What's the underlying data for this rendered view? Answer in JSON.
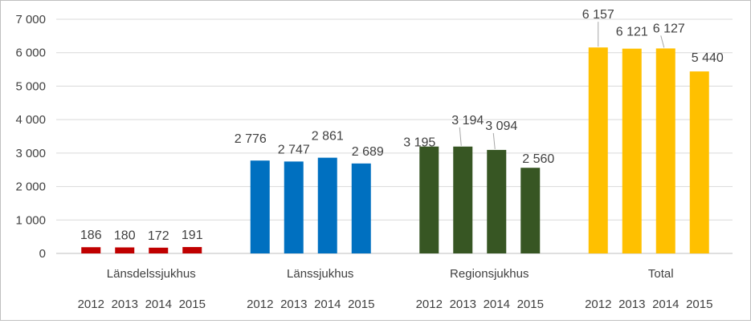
{
  "chart_data": {
    "type": "bar",
    "groups": [
      "Länsdelssjukhus",
      "Länssjukhus",
      "Regionsjukhus",
      "Total"
    ],
    "years": [
      "2012",
      "2013",
      "2014",
      "2015"
    ],
    "series": [
      {
        "group": "Länsdelssjukhus",
        "color": "#c00000",
        "values": [
          186,
          180,
          172,
          191
        ],
        "labels": [
          "186",
          "180",
          "172",
          "191"
        ]
      },
      {
        "group": "Länssjukhus",
        "color": "#0070c0",
        "values": [
          2776,
          2747,
          2861,
          2689
        ],
        "labels": [
          "2 776",
          "2 747",
          "2 861",
          "2 689"
        ]
      },
      {
        "group": "Regionsjukhus",
        "color": "#375623",
        "values": [
          3195,
          3194,
          3094,
          2560
        ],
        "labels": [
          "3 195",
          "3 194",
          "3 094",
          "2 560"
        ]
      },
      {
        "group": "Total",
        "color": "#ffc000",
        "values": [
          6157,
          6121,
          6127,
          5440
        ],
        "labels": [
          "6 157",
          "6 121",
          "6 127",
          "5 440"
        ]
      }
    ],
    "y_ticks": [
      {
        "value": 0,
        "label": "0"
      },
      {
        "value": 1000,
        "label": "1 000"
      },
      {
        "value": 2000,
        "label": "2 000"
      },
      {
        "value": 3000,
        "label": "3 000"
      },
      {
        "value": 4000,
        "label": "4 000"
      },
      {
        "value": 5000,
        "label": "5 000"
      },
      {
        "value": 6000,
        "label": "6 000"
      },
      {
        "value": 7000,
        "label": "7 000"
      }
    ],
    "ylim": [
      0,
      7000
    ],
    "grid": true,
    "legend": "none"
  }
}
